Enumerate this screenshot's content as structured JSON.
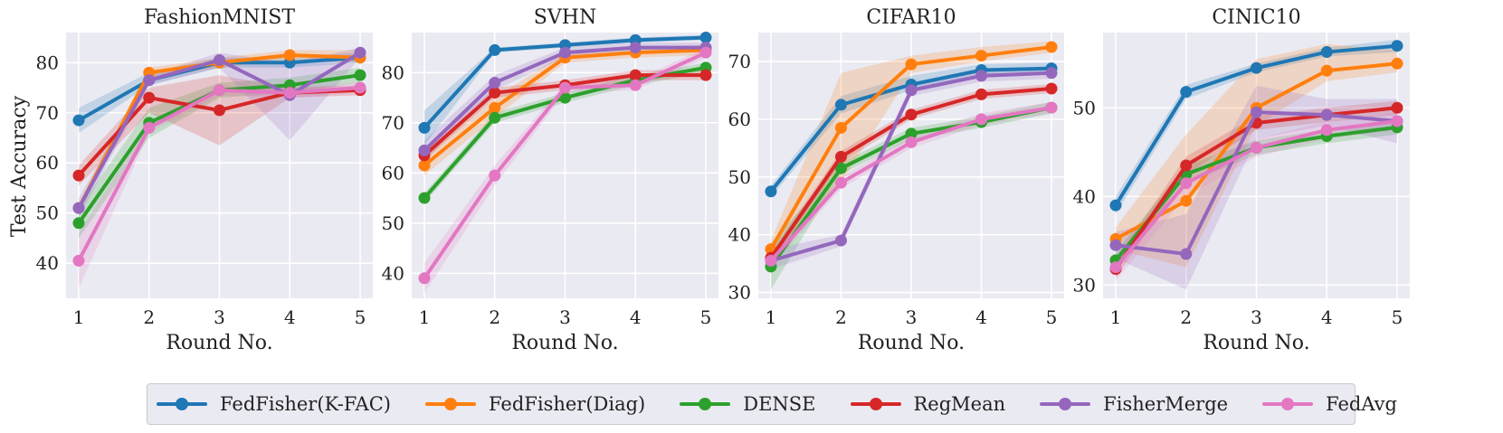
{
  "colors": {
    "FedFisher(K-FAC)": "#1f77b4",
    "FedFisher(Diag)": "#ff7f0e",
    "DENSE": "#2ca02c",
    "RegMean": "#d62728",
    "FisherMerge": "#9467bd",
    "FedAvg": "#e377c2"
  },
  "legend": [
    "FedFisher(K-FAC)",
    "FedFisher(Diag)",
    "DENSE",
    "RegMean",
    "FisherMerge",
    "FedAvg"
  ],
  "y_axis_label": "Test Accuracy",
  "chart_data": [
    {
      "type": "line",
      "title": "FashionMNIST",
      "xlabel": "Round No.",
      "ylabel": "Test Accuracy",
      "x": [
        1,
        2,
        3,
        4,
        5
      ],
      "xlim": [
        0.82,
        5.18
      ],
      "ylim": [
        33,
        86
      ],
      "yticks": [
        40,
        50,
        60,
        70,
        80
      ],
      "grid": true,
      "series": [
        {
          "name": "FedFisher(K-FAC)",
          "values": [
            68.5,
            76.5,
            80.0,
            80.0,
            81.0
          ],
          "lower": [
            66.0,
            75.5,
            79.0,
            79.0,
            80.0
          ],
          "upper": [
            71.0,
            78.0,
            81.0,
            81.0,
            82.0
          ]
        },
        {
          "name": "FedFisher(Diag)",
          "values": [
            51.0,
            78.0,
            80.0,
            81.5,
            81.0
          ],
          "lower": [
            50.0,
            77.0,
            79.0,
            80.5,
            80.0
          ],
          "upper": [
            52.0,
            79.0,
            81.0,
            82.5,
            82.5
          ]
        },
        {
          "name": "DENSE",
          "values": [
            48.0,
            68.0,
            74.5,
            75.5,
            77.5
          ],
          "lower": [
            45.0,
            65.0,
            73.0,
            74.0,
            76.0
          ],
          "upper": [
            51.0,
            71.0,
            76.0,
            77.0,
            79.0
          ]
        },
        {
          "name": "RegMean",
          "values": [
            57.5,
            73.0,
            70.5,
            74.0,
            74.5
          ],
          "lower": [
            55.5,
            70.0,
            63.5,
            73.0,
            73.5
          ],
          "upper": [
            59.5,
            75.0,
            77.5,
            75.0,
            75.5
          ]
        },
        {
          "name": "FisherMerge",
          "values": [
            51.0,
            76.5,
            80.5,
            73.5,
            82.0
          ],
          "lower": [
            49.0,
            75.5,
            79.0,
            64.5,
            81.0
          ],
          "upper": [
            53.0,
            77.5,
            82.0,
            80.0,
            83.0
          ]
        },
        {
          "name": "FedAvg",
          "values": [
            40.5,
            67.0,
            74.5,
            74.0,
            75.0
          ],
          "lower": [
            35.0,
            66.0,
            73.5,
            73.0,
            74.0
          ],
          "upper": [
            46.0,
            68.0,
            75.5,
            75.0,
            76.0
          ]
        }
      ]
    },
    {
      "type": "line",
      "title": "SVHN",
      "xlabel": "Round No.",
      "ylabel": "",
      "x": [
        1,
        2,
        3,
        4,
        5
      ],
      "xlim": [
        0.82,
        5.18
      ],
      "ylim": [
        35,
        88
      ],
      "yticks": [
        40,
        50,
        60,
        70,
        80
      ],
      "grid": true,
      "series": [
        {
          "name": "FedFisher(K-FAC)",
          "values": [
            69.0,
            84.5,
            85.5,
            86.5,
            87.0
          ],
          "lower": [
            65.5,
            84.0,
            85.0,
            86.0,
            86.5
          ],
          "upper": [
            72.5,
            85.0,
            86.0,
            87.0,
            87.5
          ]
        },
        {
          "name": "FedFisher(Diag)",
          "values": [
            61.5,
            73.0,
            83.0,
            84.0,
            84.5
          ],
          "lower": [
            59.5,
            71.0,
            82.0,
            83.0,
            83.5
          ],
          "upper": [
            63.5,
            75.0,
            84.0,
            85.0,
            85.5
          ]
        },
        {
          "name": "DENSE",
          "values": [
            55.0,
            71.0,
            75.0,
            78.5,
            81.0
          ],
          "lower": [
            54.0,
            70.0,
            74.0,
            77.5,
            80.0
          ],
          "upper": [
            56.0,
            72.0,
            76.0,
            79.5,
            82.0
          ]
        },
        {
          "name": "RegMean",
          "values": [
            63.5,
            76.0,
            77.5,
            79.5,
            79.5
          ],
          "lower": [
            62.5,
            75.0,
            76.5,
            78.5,
            78.5
          ],
          "upper": [
            64.5,
            77.0,
            78.5,
            80.5,
            80.5
          ]
        },
        {
          "name": "FisherMerge",
          "values": [
            64.5,
            78.0,
            84.0,
            85.0,
            85.0
          ],
          "lower": [
            62.5,
            76.5,
            83.0,
            84.0,
            84.0
          ],
          "upper": [
            66.5,
            79.5,
            85.0,
            86.0,
            86.0
          ]
        },
        {
          "name": "FedAvg",
          "values": [
            39.0,
            59.5,
            77.0,
            77.5,
            84.0
          ],
          "lower": [
            36.0,
            57.5,
            76.0,
            76.5,
            83.0
          ],
          "upper": [
            42.0,
            61.5,
            78.0,
            78.5,
            85.0
          ]
        }
      ]
    },
    {
      "type": "line",
      "title": "CIFAR10",
      "xlabel": "Round No.",
      "ylabel": "",
      "x": [
        1,
        2,
        3,
        4,
        5
      ],
      "xlim": [
        0.82,
        5.18
      ],
      "ylim": [
        29,
        75
      ],
      "yticks": [
        30,
        40,
        50,
        60,
        70
      ],
      "grid": true,
      "series": [
        {
          "name": "FedFisher(K-FAC)",
          "values": [
            47.5,
            62.5,
            66.0,
            68.5,
            68.8
          ],
          "lower": [
            46.5,
            61.0,
            65.0,
            67.5,
            68.0
          ],
          "upper": [
            48.5,
            64.0,
            67.5,
            69.5,
            69.8
          ]
        },
        {
          "name": "FedFisher(Diag)",
          "values": [
            37.5,
            58.5,
            69.5,
            71.0,
            72.5
          ],
          "lower": [
            36.0,
            49.0,
            68.0,
            70.0,
            71.5
          ],
          "upper": [
            39.0,
            68.0,
            71.0,
            72.5,
            73.5
          ]
        },
        {
          "name": "DENSE",
          "values": [
            34.5,
            51.5,
            57.5,
            59.5,
            62.0
          ],
          "lower": [
            30.5,
            50.5,
            56.5,
            58.5,
            61.0
          ],
          "upper": [
            38.5,
            52.5,
            58.5,
            60.5,
            63.0
          ]
        },
        {
          "name": "RegMean",
          "values": [
            36.0,
            53.5,
            60.8,
            64.3,
            65.3
          ],
          "lower": [
            35.0,
            52.5,
            60.0,
            63.5,
            64.5
          ],
          "upper": [
            37.0,
            54.5,
            61.6,
            65.1,
            66.1
          ]
        },
        {
          "name": "FisherMerge",
          "values": [
            35.5,
            39.0,
            65.0,
            67.5,
            68.0
          ],
          "lower": [
            34.0,
            38.0,
            64.0,
            66.5,
            67.0
          ],
          "upper": [
            37.5,
            40.0,
            66.0,
            68.5,
            69.0
          ]
        },
        {
          "name": "FedAvg",
          "values": [
            35.5,
            49.0,
            56.0,
            60.0,
            62.0
          ],
          "lower": [
            34.5,
            48.0,
            55.0,
            59.0,
            61.0
          ],
          "upper": [
            36.5,
            50.0,
            57.0,
            61.0,
            63.0
          ]
        }
      ]
    },
    {
      "type": "line",
      "title": "CINIC10",
      "xlabel": "Round No.",
      "ylabel": "",
      "x": [
        1,
        2,
        3,
        4,
        5
      ],
      "xlim": [
        0.82,
        5.18
      ],
      "ylim": [
        28.5,
        58.5
      ],
      "yticks": [
        30,
        40,
        50
      ],
      "grid": true,
      "series": [
        {
          "name": "FedFisher(K-FAC)",
          "values": [
            39.0,
            51.8,
            54.5,
            56.3,
            57.0
          ],
          "lower": [
            38.0,
            51.0,
            54.0,
            55.8,
            56.3
          ],
          "upper": [
            40.0,
            52.6,
            55.0,
            56.8,
            57.7
          ]
        },
        {
          "name": "FedFisher(Diag)",
          "values": [
            35.2,
            39.5,
            50.0,
            54.2,
            55.0
          ],
          "lower": [
            34.0,
            32.0,
            48.0,
            53.0,
            54.0
          ],
          "upper": [
            36.5,
            47.0,
            55.5,
            57.2,
            56.5
          ]
        },
        {
          "name": "DENSE",
          "values": [
            32.8,
            42.5,
            45.5,
            46.8,
            47.8
          ],
          "lower": [
            31.8,
            41.5,
            44.7,
            46.0,
            47.0
          ],
          "upper": [
            33.8,
            43.5,
            46.3,
            47.6,
            48.6
          ]
        },
        {
          "name": "RegMean",
          "values": [
            31.8,
            43.5,
            48.3,
            49.2,
            50.0
          ],
          "lower": [
            30.8,
            42.5,
            47.5,
            48.4,
            49.2
          ],
          "upper": [
            32.8,
            44.5,
            49.1,
            50.0,
            50.8
          ]
        },
        {
          "name": "FisherMerge",
          "values": [
            34.5,
            33.5,
            49.5,
            49.2,
            48.5
          ],
          "lower": [
            33.0,
            29.5,
            46.5,
            48.0,
            46.0
          ],
          "upper": [
            36.0,
            38.0,
            52.5,
            51.0,
            51.0
          ]
        },
        {
          "name": "FedAvg",
          "values": [
            32.0,
            41.5,
            45.5,
            47.5,
            48.5
          ],
          "lower": [
            30.5,
            40.0,
            44.5,
            46.5,
            47.5
          ],
          "upper": [
            33.5,
            43.0,
            46.5,
            48.5,
            49.5
          ]
        }
      ]
    }
  ]
}
